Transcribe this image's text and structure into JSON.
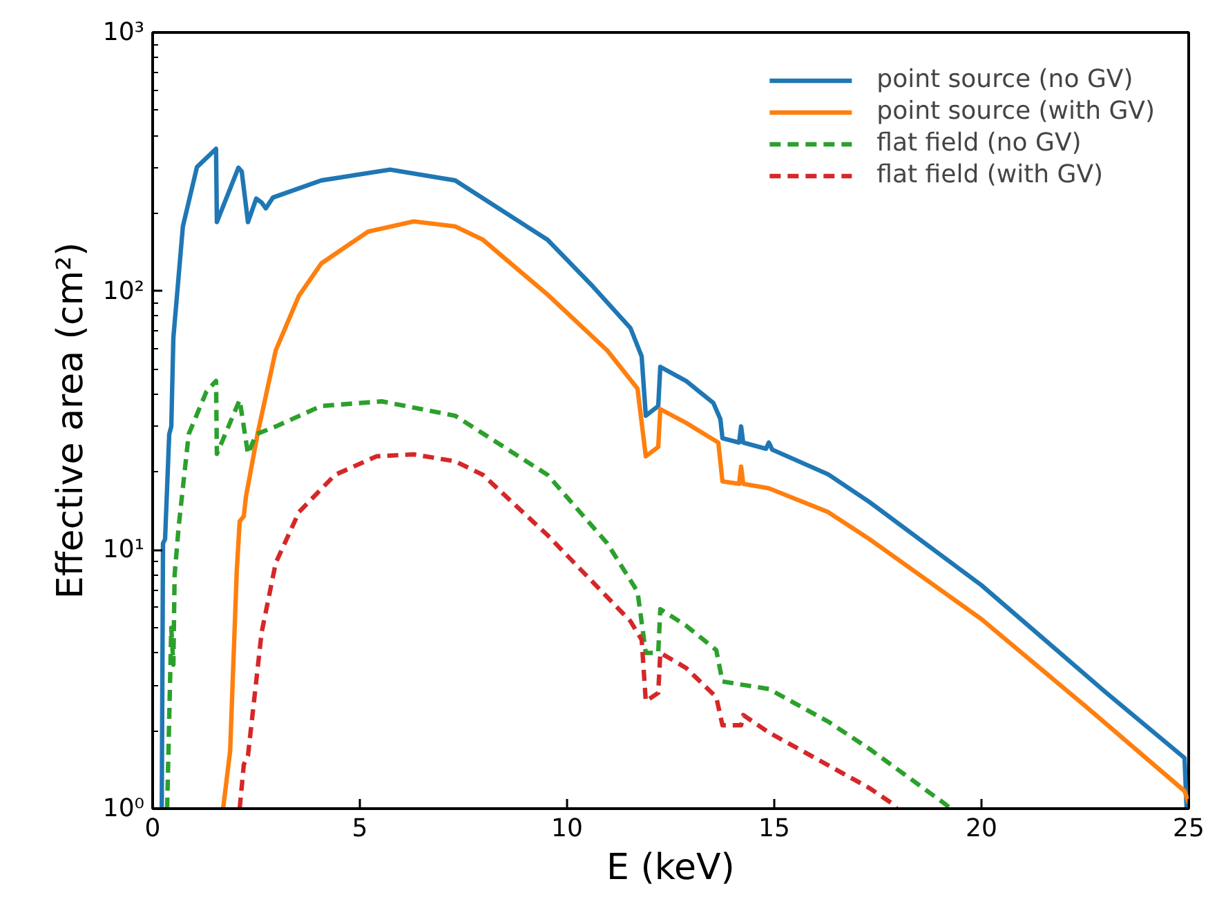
{
  "chart_data": {
    "type": "line",
    "xlabel": "E (keV)",
    "ylabel": "Effective area (cm²)",
    "log": "y",
    "xlim": [
      0,
      25
    ],
    "ylim": [
      1,
      1000
    ],
    "xticks": [
      0,
      5,
      10,
      15,
      20,
      25
    ],
    "yticks": [
      {
        "value": 1,
        "label": "10⁰"
      },
      {
        "value": 10,
        "label": "10¹"
      },
      {
        "value": 100,
        "label": "10²"
      },
      {
        "value": 1000,
        "label": "10³"
      }
    ],
    "grid": false,
    "legend": "top right",
    "marker": "none",
    "series": [
      {
        "name": "point source (no GV)",
        "color": "#1f77b4",
        "line_style": "solid",
        "x": [
          0.22,
          0.25,
          0.3,
          0.4,
          0.45,
          0.5,
          0.73,
          1.07,
          1.53,
          1.55,
          2.07,
          2.15,
          2.3,
          2.5,
          2.63,
          2.73,
          2.9,
          4.07,
          5.73,
          7.3,
          9.53,
          10.63,
          11.53,
          11.8,
          11.9,
          12.2,
          12.25,
          12.87,
          13.53,
          13.7,
          13.75,
          14.15,
          14.2,
          14.25,
          14.8,
          14.87,
          14.95,
          16.3,
          17.3,
          20,
          22.97,
          24.9,
          24.95
        ],
        "values": [
          1.0,
          10.6,
          11,
          28,
          30,
          66,
          178,
          302,
          355,
          185,
          300,
          290,
          185,
          228,
          220,
          209,
          230,
          268,
          295,
          268,
          158,
          104,
          72,
          56,
          33,
          36,
          51,
          45,
          37,
          32,
          27,
          26,
          30,
          26,
          24.6,
          26,
          24.4,
          19.6,
          15.3,
          7.3,
          2.84,
          1.57,
          1.0
        ]
      },
      {
        "name": "point source (with GV)",
        "color": "#ff7f0e",
        "line_style": "solid",
        "x": [
          1.7,
          1.87,
          2.03,
          2.1,
          2.2,
          2.25,
          2.53,
          2.97,
          3.53,
          4.07,
          5.2,
          6.3,
          7.3,
          7.97,
          9.53,
          10.97,
          11.7,
          11.9,
          12.2,
          12.25,
          12.87,
          13.65,
          13.75,
          14.15,
          14.2,
          14.25,
          14.87,
          16.3,
          17.3,
          20,
          22.6,
          24.9,
          25
        ],
        "values": [
          1.0,
          1.67,
          8.3,
          12.9,
          13.5,
          16,
          28,
          59,
          96,
          128,
          170,
          186,
          178,
          158,
          97,
          59,
          42,
          23,
          25,
          35,
          31,
          26,
          18.4,
          18,
          21,
          18,
          17.3,
          14,
          11.0,
          5.4,
          2.42,
          1.17,
          1.05
        ]
      },
      {
        "name": "flat field (no GV)",
        "color": "#2ca02c",
        "line_style": "dashed",
        "x": [
          0.35,
          0.45,
          0.5,
          0.53,
          0.63,
          0.87,
          1.3,
          1.53,
          1.55,
          2.1,
          2.3,
          2.5,
          2.97,
          4.07,
          5.53,
          7.3,
          9.53,
          10.97,
          11.7,
          11.9,
          12.2,
          12.25,
          12.87,
          13.6,
          13.75,
          14.87,
          16.3,
          17.3,
          19.13,
          19.25
        ],
        "values": [
          1.0,
          5,
          3.6,
          8,
          12.4,
          28,
          41,
          45,
          23.5,
          38,
          23.5,
          28,
          30,
          36,
          37.5,
          33,
          19.5,
          10.6,
          6.9,
          4.0,
          4.0,
          5.9,
          5.1,
          4.1,
          3.1,
          2.9,
          2.17,
          1.7,
          1.04,
          1.0
        ]
      },
      {
        "name": "flat field (with GV)",
        "color": "#d62728",
        "line_style": "dashed",
        "x": [
          2.1,
          2.2,
          2.3,
          2.63,
          2.97,
          3.53,
          4.4,
          5.4,
          6.3,
          7.3,
          7.97,
          9.53,
          11.53,
          11.8,
          11.9,
          12.2,
          12.25,
          12.87,
          13.6,
          13.75,
          14.2,
          14.25,
          14.87,
          17.3,
          17.87,
          17.95
        ],
        "values": [
          1.0,
          1.48,
          1.6,
          4.8,
          8.9,
          14,
          19.5,
          23,
          23.4,
          22,
          19.5,
          11.4,
          5.3,
          4.5,
          2.6,
          2.8,
          4.0,
          3.5,
          2.7,
          2.1,
          2.1,
          2.3,
          1.97,
          1.2,
          1.04,
          1.0
        ]
      }
    ]
  }
}
